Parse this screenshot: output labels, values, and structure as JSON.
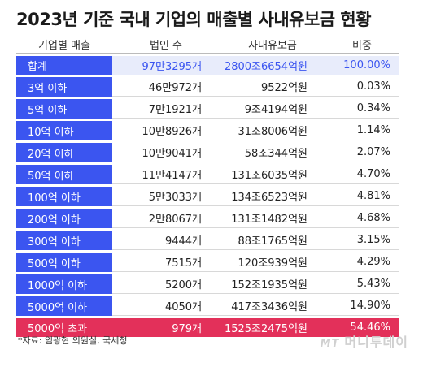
{
  "title": "2023년 기준 국내 기업의 매출별 사내유보금 현황",
  "headers": [
    "기업별 매출",
    "법인 수",
    "사내유보금",
    "비중"
  ],
  "rows": [
    {
      "category": "합계",
      "count": "97만3295개",
      "retained": "2800조6654억원",
      "share": "100.00%",
      "style": "total"
    },
    {
      "category": "3억 이하",
      "count": "46만972개",
      "retained": "9522억원",
      "share": "0.03%",
      "style": "normal"
    },
    {
      "category": "5억 이하",
      "count": "7만1921개",
      "retained": "9조4194억원",
      "share": "0.34%",
      "style": "normal"
    },
    {
      "category": "10억 이하",
      "count": "10만8926개",
      "retained": "31조8006억원",
      "share": "1.14%",
      "style": "normal"
    },
    {
      "category": "20억 이하",
      "count": "10만9041개",
      "retained": "58조344억원",
      "share": "2.07%",
      "style": "normal"
    },
    {
      "category": "50억 이하",
      "count": "11만4147개",
      "retained": "131조6035억원",
      "share": "4.70%",
      "style": "normal"
    },
    {
      "category": "100억 이하",
      "count": "5만3033개",
      "retained": "134조6523억원",
      "share": "4.81%",
      "style": "normal"
    },
    {
      "category": "200억 이하",
      "count": "2만8067개",
      "retained": "131조1482억원",
      "share": "4.68%",
      "style": "normal"
    },
    {
      "category": "300억 이하",
      "count": "9444개",
      "retained": "88조1765억원",
      "share": "3.15%",
      "style": "normal"
    },
    {
      "category": "500억 이하",
      "count": "7515개",
      "retained": "120조939억원",
      "share": "4.29%",
      "style": "normal"
    },
    {
      "category": "1000억 이하",
      "count": "5200개",
      "retained": "152조1935억원",
      "share": "5.43%",
      "style": "normal"
    },
    {
      "category": "5000억 이하",
      "count": "4050개",
      "retained": "417조3436억원",
      "share": "14.90%",
      "style": "normal"
    },
    {
      "category": "5000억 초과",
      "count": "979개",
      "retained": "1525조2475억원",
      "share": "54.46%",
      "style": "top"
    }
  ],
  "source": "*자료: 임광현 의원실, 국세청",
  "logo": {
    "mt": "MT",
    "name": "머니투데이"
  },
  "colors": {
    "header_blue": "#3b55f0",
    "total_bg": "#e8ecfb",
    "highlight_red": "#e3305a"
  }
}
